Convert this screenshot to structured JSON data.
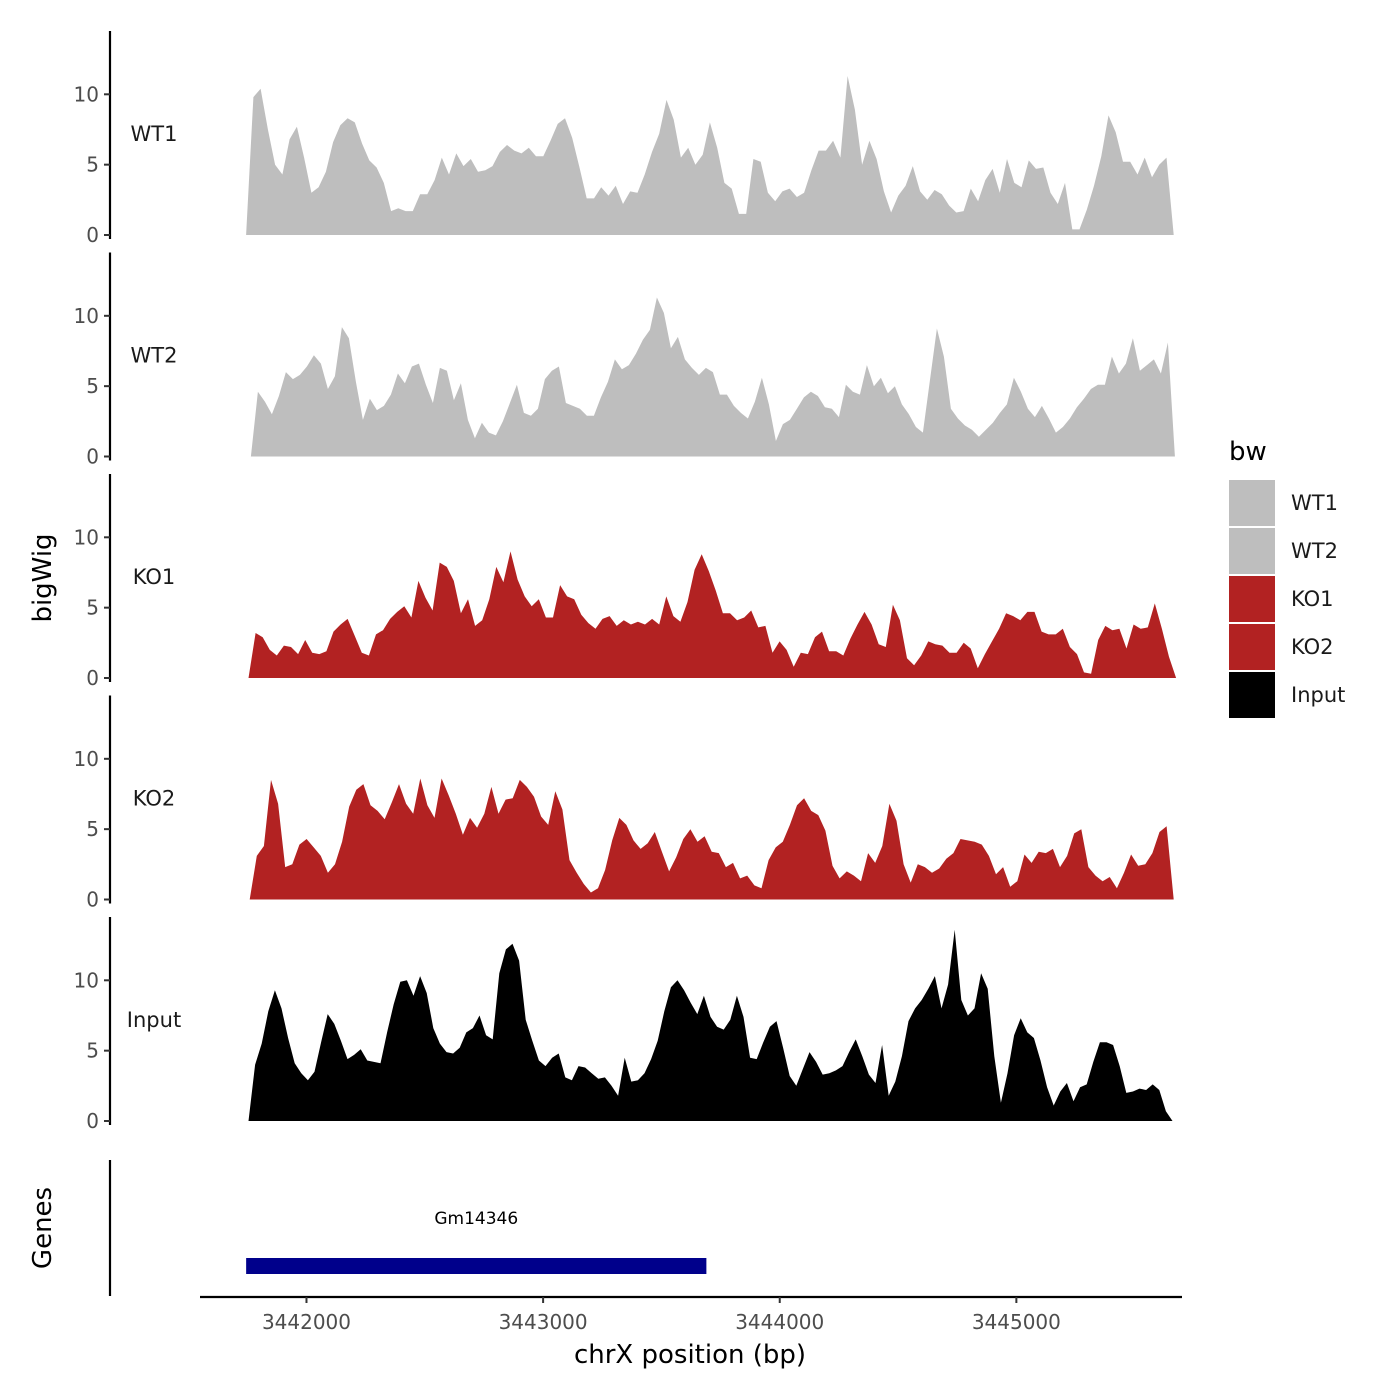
{
  "chart_data": {
    "type": "area",
    "title": "",
    "xlabel": "chrX position (bp)",
    "ylabel": "bigWig",
    "genes_label": "Genes",
    "xlim": [
      3441550,
      3445700
    ],
    "ylim": [
      0,
      14.5
    ],
    "x_ticks": [
      3442000,
      3443000,
      3444000,
      3445000
    ],
    "x_tick_labels": [
      "3442000",
      "3443000",
      "3444000",
      "3445000"
    ],
    "y_ticks": [
      0,
      5,
      10
    ],
    "y_tick_labels": [
      "0",
      "5",
      "10"
    ],
    "legend": {
      "title": "bw",
      "position": "right",
      "entries": [
        {
          "label": "WT1",
          "color": "#bebebe"
        },
        {
          "label": "WT2",
          "color": "#bebebe"
        },
        {
          "label": "KO1",
          "color": "#b22222"
        },
        {
          "label": "KO2",
          "color": "#b22222"
        },
        {
          "label": "Input",
          "color": "#000000"
        }
      ]
    },
    "series": [
      {
        "name": "WT1",
        "color": "#bebebe",
        "x_start": 3441745,
        "x_end": 3445665,
        "values": [
          0,
          9.8,
          10.4,
          7.5,
          5,
          4.3,
          6.8,
          7.7,
          5.5,
          3,
          3.4,
          4.5,
          6.6,
          7.8,
          8.3,
          8,
          6.5,
          5.3,
          4.8,
          3.7,
          1.7,
          1.9,
          1.7,
          1.7,
          2.9,
          2.9,
          3.9,
          5.5,
          4.3,
          5.8,
          4.9,
          5.4,
          4.5,
          4.6,
          4.9,
          5.9,
          6.4,
          6,
          5.8,
          6.2,
          5.6,
          5.6,
          6.7,
          7.9,
          8.3,
          6.9,
          4.8,
          2.6,
          2.6,
          3.4,
          2.8,
          3.5,
          2.2,
          3.1,
          3,
          4.3,
          5.9,
          7.2,
          9.6,
          8.2,
          5.5,
          6.2,
          5,
          5.7,
          8,
          6.2,
          3.7,
          3.3,
          1.5,
          1.5,
          5.4,
          5.2,
          3,
          2.4,
          3.1,
          3.3,
          2.7,
          3,
          4.6,
          6,
          6,
          6.7,
          5.5,
          11.3,
          8.9,
          5,
          6.7,
          5.4,
          3.1,
          1.6,
          2.8,
          3.5,
          4.9,
          3.1,
          2.5,
          3.2,
          2.9,
          2.1,
          1.6,
          1.7,
          3.3,
          2.4,
          3.9,
          4.7,
          3,
          5.4,
          3.7,
          3.4,
          5.3,
          4.7,
          4.8,
          3,
          2.2,
          3.7,
          0.4,
          0.4,
          1.8,
          3.5,
          5.6,
          8.5,
          7.3,
          5.2,
          5.2,
          4.3,
          5.5,
          4.1,
          5,
          5.5,
          0
        ]
      },
      {
        "name": "WT2",
        "color": "#bebebe",
        "x_start": 3441765,
        "x_end": 3445670,
        "values": [
          0,
          4.6,
          3.9,
          3,
          4.3,
          6,
          5.5,
          5.8,
          6.4,
          7.2,
          6.6,
          4.8,
          5.7,
          9.2,
          8.4,
          5.3,
          2.6,
          4.1,
          3.3,
          3.6,
          4.4,
          5.9,
          5.2,
          6.4,
          6.6,
          5.1,
          3.8,
          6.3,
          6.1,
          4,
          5.2,
          2.6,
          1.3,
          2.4,
          1.7,
          1.5,
          2.5,
          3.8,
          5.1,
          3.1,
          2.9,
          3.4,
          5.5,
          6.1,
          6.4,
          3.8,
          3.6,
          3.4,
          2.9,
          2.9,
          4.2,
          5.3,
          6.9,
          6.2,
          6.5,
          7.3,
          8.3,
          9,
          11.3,
          10.2,
          7.7,
          8.5,
          6.9,
          6.3,
          5.8,
          6.3,
          6,
          4.4,
          4.4,
          3.6,
          3.1,
          2.7,
          3.9,
          5.6,
          3.7,
          1.1,
          2.3,
          2.6,
          3.4,
          4.2,
          4.6,
          4.3,
          3.5,
          3.4,
          2.8,
          5.1,
          4.6,
          4.4,
          6.5,
          5,
          5.6,
          4.5,
          5,
          3.7,
          3,
          2.1,
          1.7,
          5.4,
          9.1,
          7.1,
          3.4,
          2.7,
          2.2,
          1.9,
          1.4,
          1.9,
          2.4,
          3.1,
          3.7,
          5.6,
          4.6,
          3.4,
          2.8,
          3.6,
          2.7,
          1.7,
          2.1,
          2.7,
          3.5,
          4.1,
          4.8,
          5.1,
          5.1,
          7.1,
          5.9,
          6.6,
          8.4,
          6.1,
          6.5,
          6.9,
          5.9,
          8.1,
          0
        ]
      },
      {
        "name": "KO1",
        "color": "#b22222",
        "x_start": 3441755,
        "x_end": 3445675,
        "values": [
          0,
          3.2,
          2.9,
          2,
          1.6,
          2.3,
          2.2,
          1.7,
          2.7,
          1.8,
          1.7,
          1.9,
          3.3,
          3.8,
          4.2,
          3,
          1.8,
          1.6,
          3.1,
          3.4,
          4.2,
          4.7,
          5.1,
          4.3,
          6.9,
          5.7,
          4.8,
          8.2,
          7.9,
          6.9,
          4.6,
          5.6,
          3.7,
          4.1,
          5.6,
          7.9,
          6.8,
          9,
          7,
          5.8,
          5.1,
          5.6,
          4.3,
          4.3,
          6.6,
          5.8,
          5.6,
          4.5,
          3.9,
          3.5,
          4.2,
          4.4,
          3.7,
          4.1,
          3.8,
          4,
          3.8,
          4.2,
          3.8,
          5.8,
          4.4,
          4,
          5.4,
          7.7,
          8.8,
          7.6,
          6.2,
          4.6,
          4.6,
          4.1,
          4.3,
          4.8,
          3.6,
          3.7,
          1.8,
          2.6,
          2,
          0.8,
          1.8,
          1.7,
          2.9,
          3.3,
          1.9,
          1.9,
          1.6,
          2.8,
          3.8,
          4.7,
          3.8,
          2.4,
          2.2,
          5.2,
          4.1,
          1.4,
          0.9,
          1.6,
          2.6,
          2.4,
          2.3,
          1.8,
          1.8,
          2.5,
          2.1,
          0.7,
          1.7,
          2.6,
          3.5,
          4.6,
          4.4,
          4.1,
          4.7,
          4.7,
          3.3,
          3.1,
          3.1,
          3.5,
          2.2,
          1.7,
          0.4,
          0.3,
          2.7,
          3.7,
          3.4,
          3.5,
          2.1,
          3.8,
          3.5,
          3.6,
          5.3,
          3.5,
          1.5,
          0
        ]
      },
      {
        "name": "KO2",
        "color": "#b22222",
        "x_start": 3441760,
        "x_end": 3445665,
        "values": [
          0,
          3.1,
          3.8,
          8.5,
          6.8,
          2.3,
          2.5,
          3.9,
          4.3,
          3.7,
          3.1,
          1.9,
          2.5,
          4.1,
          6.6,
          7.8,
          8.2,
          6.7,
          6.3,
          5.7,
          6.9,
          8.2,
          6.8,
          6.1,
          8.6,
          6.7,
          5.8,
          8.6,
          7.4,
          6.1,
          4.6,
          5.8,
          5.1,
          6.1,
          8,
          6.1,
          7.1,
          7.2,
          8.5,
          8,
          7.3,
          5.9,
          5.3,
          7.7,
          6.4,
          2.8,
          1.9,
          1.1,
          0.5,
          0.8,
          2.1,
          4.2,
          5.8,
          5.3,
          4.2,
          3.6,
          4,
          4.8,
          3.4,
          2,
          3,
          4.3,
          5,
          4.1,
          4.5,
          3.4,
          3.3,
          2.3,
          2.6,
          1.5,
          1.7,
          1,
          0.8,
          2.8,
          3.7,
          4.1,
          5.3,
          6.7,
          7.2,
          6.3,
          6,
          4.9,
          2.4,
          1.5,
          2,
          1.7,
          1.3,
          3.3,
          2.6,
          3.8,
          6.8,
          5.6,
          2.5,
          1.2,
          2.5,
          2.3,
          1.9,
          2.2,
          2.9,
          3.3,
          4.3,
          4.2,
          4.1,
          3.9,
          3.1,
          1.8,
          2.3,
          0.9,
          1.3,
          3.2,
          2.6,
          3.4,
          3.3,
          3.6,
          2.3,
          3.1,
          4.7,
          5,
          2.3,
          1.7,
          1.3,
          1.6,
          0.8,
          1.9,
          3.2,
          2.4,
          2.5,
          3.3,
          4.8,
          5.2,
          0
        ]
      },
      {
        "name": "Input",
        "color": "#000000",
        "x_start": 3441755,
        "x_end": 3445660,
        "values": [
          0,
          4,
          5.5,
          7.8,
          9.3,
          8,
          5.9,
          4.1,
          3.4,
          2.9,
          3.5,
          5.6,
          7.6,
          6.9,
          5.7,
          4.4,
          4.7,
          5.1,
          4.3,
          4.2,
          4.1,
          6.3,
          8.3,
          9.9,
          10,
          8.9,
          10.3,
          9.1,
          6.6,
          5.5,
          4.9,
          4.8,
          5.2,
          6.3,
          6.6,
          7.5,
          6.1,
          5.8,
          10.5,
          12.2,
          12.6,
          11.4,
          7.2,
          5.7,
          4.3,
          3.9,
          4.5,
          4.8,
          3.1,
          2.9,
          3.9,
          3.8,
          3.4,
          3,
          3.1,
          2.5,
          1.8,
          4.5,
          2.8,
          2.9,
          3.4,
          4.4,
          5.7,
          7.8,
          9.5,
          10,
          9.3,
          8.4,
          7.6,
          8.9,
          7.4,
          6.7,
          6.5,
          7.2,
          8.9,
          7.4,
          4.5,
          4.4,
          5.6,
          6.7,
          7.1,
          5.2,
          3.2,
          2.5,
          3.7,
          4.9,
          4.2,
          3.3,
          3.4,
          3.6,
          3.9,
          4.9,
          5.8,
          4.6,
          3.3,
          2.7,
          5.4,
          1.8,
          2.8,
          4.6,
          7.1,
          8,
          8.6,
          9.4,
          10.3,
          8,
          9.7,
          13.6,
          8.6,
          7.5,
          8,
          10.5,
          9.4,
          4.6,
          1.3,
          3.4,
          6.1,
          7.3,
          6.3,
          5.9,
          4.3,
          2.4,
          1.1,
          2.1,
          2.7,
          1.4,
          2.4,
          2.6,
          4.2,
          5.6,
          5.6,
          5.4,
          3.9,
          2,
          2.1,
          2.3,
          2.2,
          2.6,
          2.2,
          0.7,
          0
        ]
      }
    ],
    "genes": [
      {
        "name": "Gm14346",
        "start": 3441745,
        "end": 3443690,
        "color": "#00008b"
      }
    ]
  }
}
